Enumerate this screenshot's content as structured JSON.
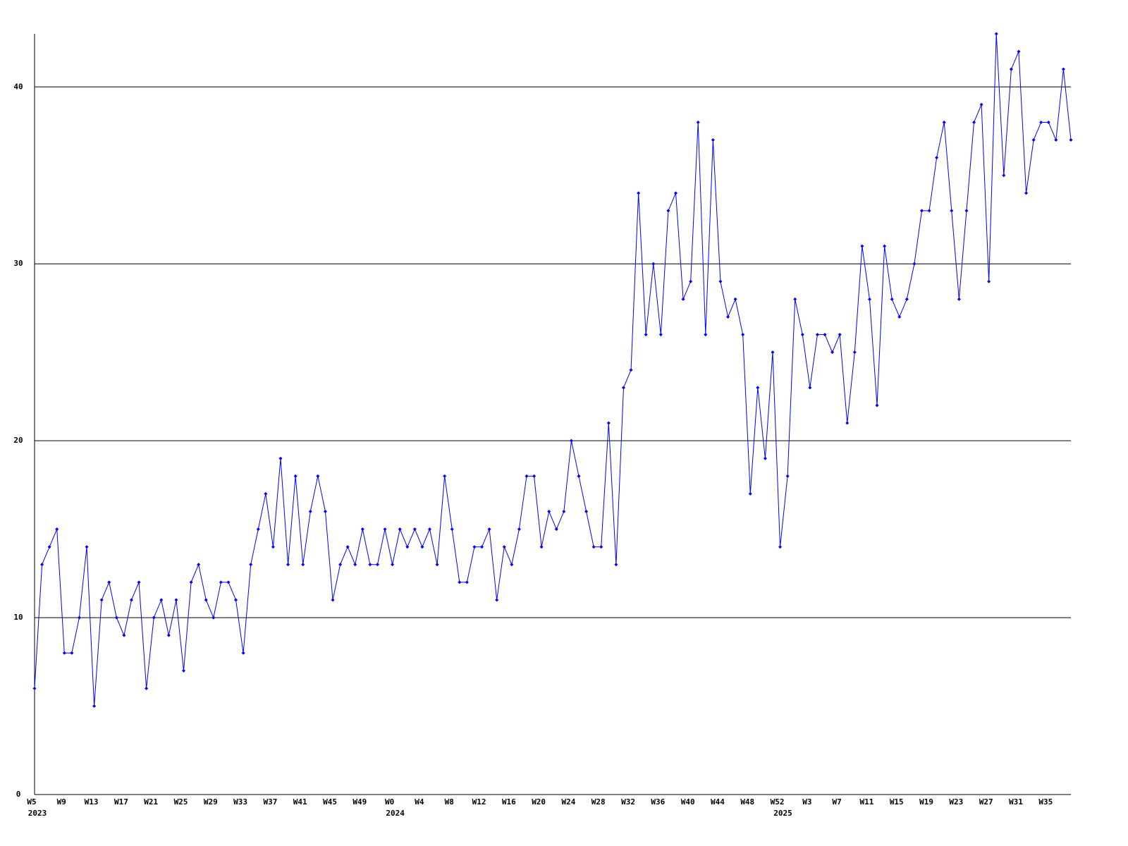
{
  "chart_data": {
    "type": "line",
    "categories": [
      "W5",
      null,
      null,
      null,
      "W9",
      null,
      null,
      null,
      "W13",
      null,
      null,
      null,
      "W17",
      null,
      null,
      null,
      "W21",
      null,
      null,
      null,
      "W25",
      null,
      null,
      null,
      "W29",
      null,
      null,
      null,
      "W33",
      null,
      null,
      null,
      "W37",
      null,
      null,
      null,
      "W41",
      null,
      null,
      null,
      "W45",
      null,
      null,
      null,
      "W49",
      null,
      null,
      null,
      "W0",
      null,
      null,
      null,
      "W4",
      null,
      null,
      null,
      "W8",
      null,
      null,
      null,
      "W12",
      null,
      null,
      null,
      "W16",
      null,
      null,
      null,
      "W20",
      null,
      null,
      null,
      "W24",
      null,
      null,
      null,
      "W28",
      null,
      null,
      null,
      "W32",
      null,
      null,
      null,
      "W36",
      null,
      null,
      null,
      "W40",
      null,
      null,
      null,
      "W44",
      null,
      null,
      null,
      "W48",
      null,
      null,
      null,
      "W52",
      null,
      null,
      null,
      "W3",
      null,
      null,
      null,
      "W7",
      null,
      null,
      null,
      "W11",
      null,
      null,
      null,
      "W15",
      null,
      null,
      null,
      "W19",
      null,
      null,
      null,
      "W23",
      null,
      null,
      null,
      "W27",
      null,
      null,
      null,
      "W31",
      null,
      null,
      null,
      "W35",
      null,
      null,
      null
    ],
    "category_years": [
      "2023",
      null,
      null,
      null,
      null,
      null,
      null,
      null,
      null,
      null,
      null,
      null,
      null,
      null,
      null,
      null,
      null,
      null,
      null,
      null,
      null,
      null,
      null,
      null,
      null,
      null,
      null,
      null,
      null,
      null,
      null,
      null,
      null,
      null,
      null,
      null,
      null,
      null,
      null,
      null,
      null,
      null,
      null,
      null,
      null,
      null,
      null,
      null,
      "2024",
      null,
      null,
      null,
      null,
      null,
      null,
      null,
      null,
      null,
      null,
      null,
      null,
      null,
      null,
      null,
      null,
      null,
      null,
      null,
      null,
      null,
      null,
      null,
      null,
      null,
      null,
      null,
      null,
      null,
      null,
      null,
      null,
      null,
      null,
      null,
      null,
      null,
      null,
      null,
      null,
      null,
      null,
      null,
      null,
      null,
      null,
      null,
      null,
      null,
      null,
      null,
      "2025",
      null,
      null,
      null,
      null,
      null,
      null,
      null,
      null,
      null,
      null,
      null,
      null,
      null,
      null,
      null,
      null,
      null,
      null,
      null,
      null,
      null,
      null,
      null,
      null,
      null,
      null,
      null,
      null,
      null,
      null,
      null,
      null,
      null,
      null,
      null,
      null,
      null,
      null,
      null
    ],
    "values": [
      6,
      13,
      14,
      15,
      8,
      8,
      10,
      14,
      5,
      11,
      12,
      10,
      9,
      11,
      12,
      6,
      10,
      11,
      9,
      11,
      7,
      12,
      13,
      11,
      10,
      12,
      12,
      11,
      8,
      13,
      15,
      17,
      14,
      19,
      13,
      18,
      13,
      16,
      18,
      16,
      11,
      13,
      14,
      13,
      15,
      13,
      13,
      15,
      13,
      15,
      14,
      15,
      14,
      15,
      13,
      18,
      15,
      12,
      12,
      14,
      14,
      15,
      11,
      14,
      13,
      15,
      18,
      18,
      14,
      16,
      15,
      16,
      20,
      18,
      16,
      14,
      14,
      21,
      13,
      23,
      24,
      34,
      26,
      30,
      26,
      33,
      34,
      28,
      29,
      38,
      26,
      37,
      29,
      27,
      28,
      26,
      17,
      23,
      19,
      25,
      14,
      18,
      28,
      26,
      23,
      26,
      26,
      25,
      26,
      21,
      25,
      31,
      28,
      22,
      31,
      28,
      27,
      28,
      30,
      33,
      33,
      36,
      38,
      33,
      28,
      33,
      38,
      39,
      29,
      43,
      35,
      41,
      42,
      34,
      37,
      38,
      38,
      37,
      41,
      37
    ],
    "color": "#0000ff",
    "ylim": [
      0,
      43
    ],
    "yticks": [
      0,
      10,
      20,
      30,
      40
    ],
    "grid": true
  }
}
